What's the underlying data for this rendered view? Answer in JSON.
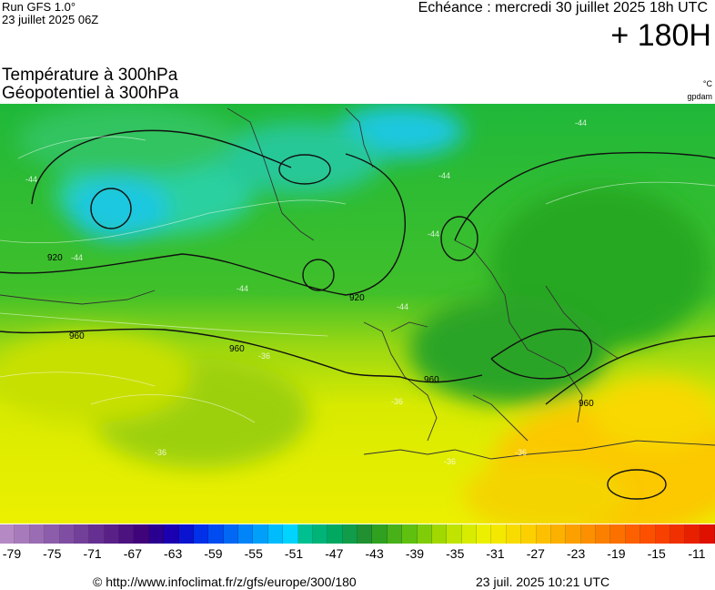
{
  "header": {
    "run_title": "Run GFS 1.0°",
    "run_date": "23 juillet 2025 06Z",
    "echeance": "Echéance : mercredi 30 juillet 2025 18h UTC",
    "lead_time": "+ 180H"
  },
  "parameters": {
    "line1": "Température à 300hPa",
    "line2": "Géopotentiel à 300hPa",
    "unit1": "°C",
    "unit2": "gpdam"
  },
  "map": {
    "contour_labels": [
      "920",
      "920",
      "960",
      "960",
      "960",
      "960"
    ],
    "isotherm_labels": [
      "-44",
      "-44",
      "-44",
      "-44",
      "-44",
      "-44",
      "-44",
      "-36",
      "-36",
      "-36",
      "-36",
      "-36"
    ]
  },
  "colorbar": {
    "colors": [
      "#b58ac4",
      "#a77bbb",
      "#9a6cb3",
      "#8c5daa",
      "#7f4ea2",
      "#723f99",
      "#653091",
      "#592188",
      "#4c1280",
      "#40047a",
      "#2a0090",
      "#1a00b0",
      "#0a14d0",
      "#0030e8",
      "#004cf0",
      "#0068f4",
      "#0084f8",
      "#00a0fa",
      "#00bcfc",
      "#00d4fe",
      "#00c090",
      "#00b478",
      "#00a860",
      "#109c48",
      "#209030",
      "#30a020",
      "#48b018",
      "#60c010",
      "#80cc08",
      "#a0d800",
      "#c0e400",
      "#d8ec00",
      "#ecf000",
      "#f4e800",
      "#f8dc00",
      "#fcd000",
      "#fcc000",
      "#fcb000",
      "#fca000",
      "#fc9000",
      "#fc8000",
      "#fc7000",
      "#fc6000",
      "#fc5000",
      "#f84000",
      "#f03000",
      "#e82000",
      "#e01000"
    ],
    "tick_labels": [
      "-79",
      "-75",
      "-71",
      "-67",
      "-63",
      "-59",
      "-55",
      "-51",
      "-47",
      "-43",
      "-39",
      "-35",
      "-31",
      "-27",
      "-23",
      "-19",
      "-15",
      "-11"
    ]
  },
  "footer": {
    "credit": "© http://www.infoclimat.fr/z/gfs/europe/300/180",
    "generated": "23 juil. 2025 10:21 UTC"
  }
}
